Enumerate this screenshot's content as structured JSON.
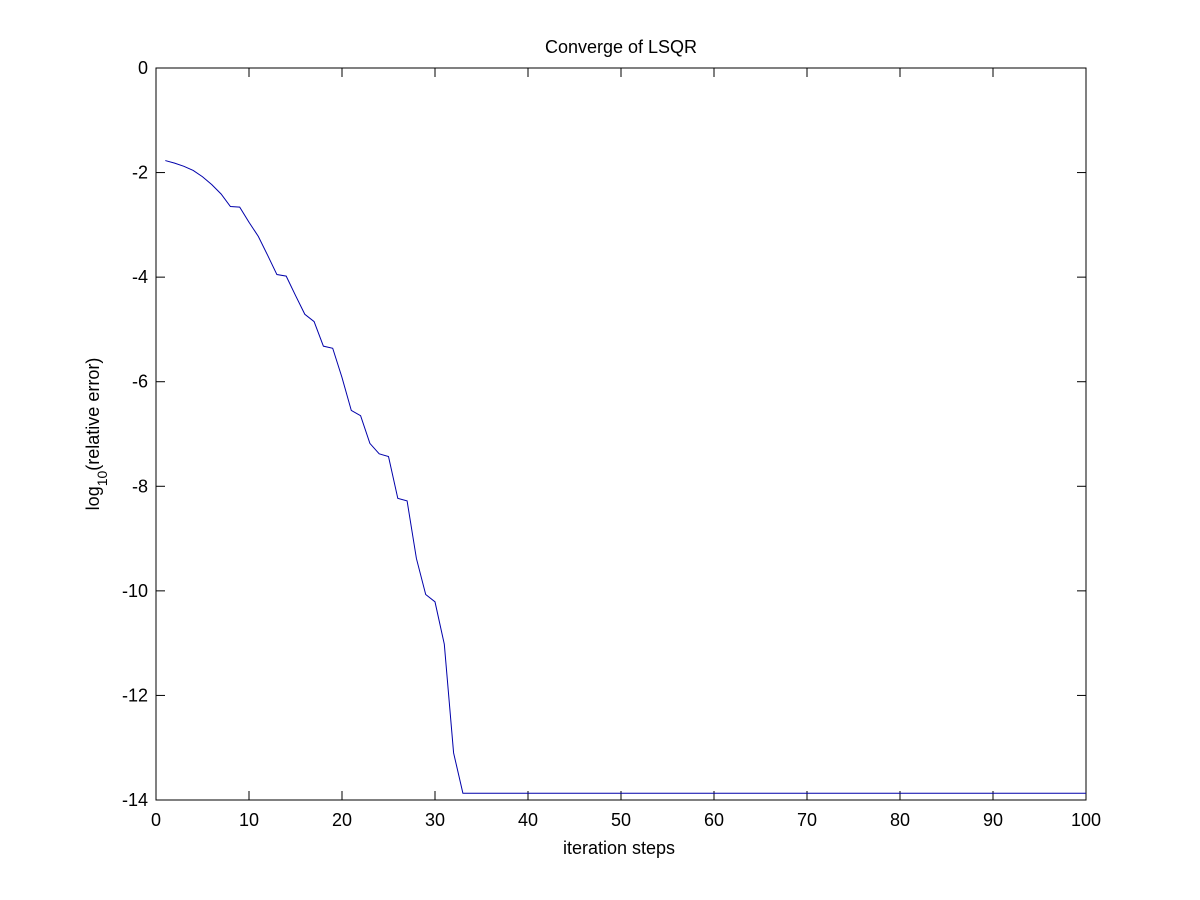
{
  "chart_data": {
    "type": "line",
    "title": "Converge of LSQR",
    "xlabel": "iteration steps",
    "ylabel": {
      "prefix": "log",
      "subscript": "10",
      "suffix": "(relative error)"
    },
    "xlim": [
      0,
      100
    ],
    "ylim": [
      -14,
      0
    ],
    "xticks": [
      0,
      10,
      20,
      30,
      40,
      50,
      60,
      70,
      80,
      90,
      100
    ],
    "yticks": [
      0,
      -2,
      -4,
      -6,
      -8,
      -10,
      -12,
      -14
    ],
    "grid": false,
    "line_color": "#0000aa",
    "series": [
      {
        "x": [
          1,
          2,
          3,
          4,
          5,
          6,
          7,
          8,
          9,
          10,
          11,
          12,
          13,
          14,
          15,
          16,
          17,
          18,
          19,
          20,
          21,
          22,
          23,
          24,
          25,
          26,
          27,
          28,
          29,
          30,
          31,
          32,
          33,
          34,
          100
        ],
        "values": [
          -1.77,
          -1.82,
          -1.88,
          -1.96,
          -2.08,
          -2.23,
          -2.41,
          -2.65,
          -2.66,
          -2.95,
          -3.22,
          -3.58,
          -3.95,
          -3.98,
          -4.35,
          -4.71,
          -4.85,
          -5.32,
          -5.36,
          -5.92,
          -6.55,
          -6.65,
          -7.18,
          -7.38,
          -7.43,
          -8.23,
          -8.28,
          -9.38,
          -10.07,
          -10.21,
          -11.02,
          -13.1,
          -13.87,
          -13.87,
          -13.87
        ]
      }
    ]
  }
}
